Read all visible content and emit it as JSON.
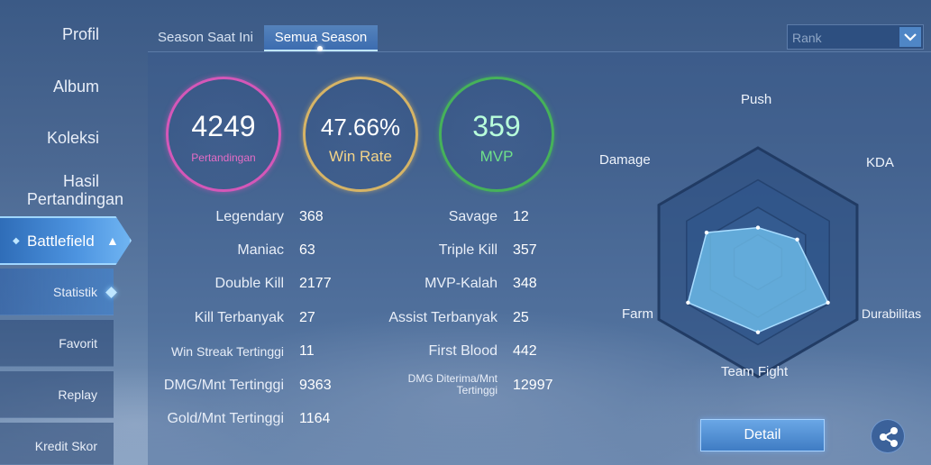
{
  "sidebar": {
    "items": [
      {
        "label": "Profil"
      },
      {
        "label": "Album"
      },
      {
        "label": "Koleksi"
      },
      {
        "label": "Hasil"
      },
      {
        "label": "Pertandingan"
      }
    ],
    "active_section": "Battlefield",
    "sub_items": [
      {
        "label": "Statistik"
      },
      {
        "label": "Favorit"
      },
      {
        "label": "Replay"
      },
      {
        "label": "Kredit Skor"
      }
    ]
  },
  "tabs": [
    {
      "label": "Season Saat Ini"
    },
    {
      "label": "Semua Season"
    }
  ],
  "dropdown": {
    "value": "Rank"
  },
  "summary": {
    "matches": {
      "value": "4249",
      "label": "Pertandingan"
    },
    "win_rate": {
      "value": "47.66%",
      "label": "Win Rate"
    },
    "mvp": {
      "value": "359",
      "label": "MVP"
    }
  },
  "stats_left": [
    {
      "label": "Legendary",
      "value": "368"
    },
    {
      "label": "Maniac",
      "value": "63"
    },
    {
      "label": "Double Kill",
      "value": "2177"
    },
    {
      "label": "Kill Terbanyak",
      "value": "27"
    },
    {
      "label": "Win Streak Tertinggi",
      "value": "11"
    },
    {
      "label": "DMG/Mnt Tertinggi",
      "value": "9363"
    },
    {
      "label": "Gold/Mnt Tertinggi",
      "value": "1164"
    }
  ],
  "stats_right": [
    {
      "label": "Savage",
      "value": "12"
    },
    {
      "label": "Triple Kill",
      "value": "357"
    },
    {
      "label": "MVP-Kalah",
      "value": "348"
    },
    {
      "label": "Assist Terbanyak",
      "value": "25"
    },
    {
      "label": "First Blood",
      "value": "442"
    },
    {
      "label": "DMG Diterima/Mnt Tertinggi",
      "label_line1": "DMG Diterima/Mnt",
      "label_line2": "Tertinggi",
      "value": "12997"
    }
  ],
  "radar": {
    "axes": [
      "Push",
      "KDA",
      "Durabilitas",
      "Team Fight",
      "Farm",
      "Damage"
    ],
    "values": [
      0.42,
      0.55,
      0.98,
      0.85,
      0.98,
      0.72
    ]
  },
  "buttons": {
    "detail": "Detail"
  },
  "icons": {
    "share": "share-icon",
    "dropdown": "chevron-down-icon",
    "expand": "chevron-up-icon"
  }
}
